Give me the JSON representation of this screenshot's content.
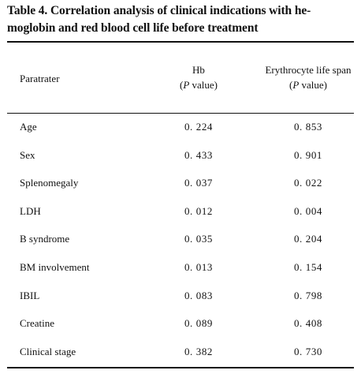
{
  "caption": {
    "line1": "Table 4.  Correlation analysis of clinical indications with he-",
    "line2": "moglobin and red blood cell life before treatment"
  },
  "header": {
    "param": "Paratrater",
    "hb_name": "Hb",
    "hb_sub_open": "(",
    "hb_sub_p": "P",
    "hb_sub_close": " value)",
    "ery_name": "Erythrocyte life span",
    "ery_sub_open": "(",
    "ery_sub_p": "P",
    "ery_sub_close": " value)"
  },
  "rows": [
    {
      "name": "Age",
      "hb": "0. 224",
      "ery": "0. 853"
    },
    {
      "name": "Sex",
      "hb": "0. 433",
      "ery": "0. 901"
    },
    {
      "name": "Splenomegaly",
      "hb": "0. 037",
      "ery": "0. 022"
    },
    {
      "name": "LDH",
      "hb": "0. 012",
      "ery": "0. 004"
    },
    {
      "name": "B syndrome",
      "hb": "0. 035",
      "ery": "0. 204"
    },
    {
      "name": "BM involvement",
      "hb": "0. 013",
      "ery": "0. 154"
    },
    {
      "name": "IBIL",
      "hb": "0. 083",
      "ery": "0. 798"
    },
    {
      "name": "Creatine",
      "hb": "0. 089",
      "ery": "0. 408"
    },
    {
      "name": "Clinical stage",
      "hb": "0. 382",
      "ery": "0. 730"
    }
  ]
}
